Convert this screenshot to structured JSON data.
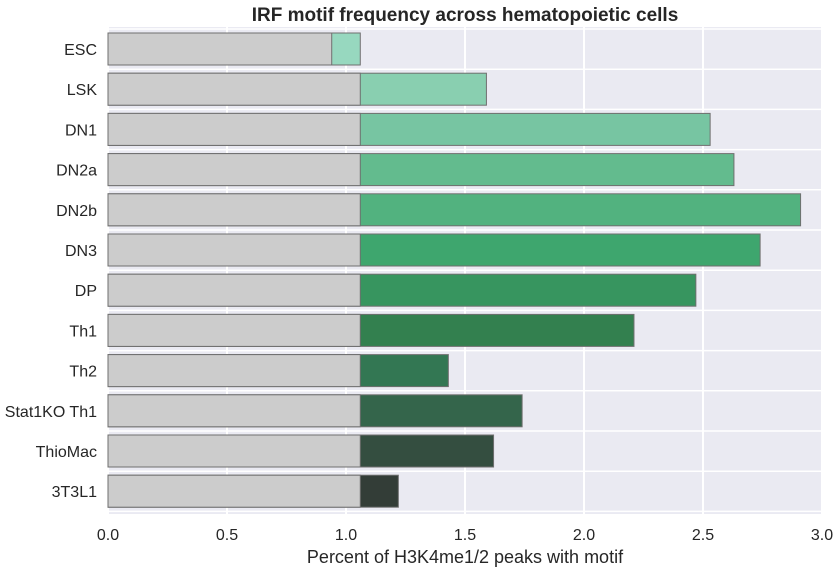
{
  "chart_data": {
    "type": "bar",
    "orientation": "horizontal",
    "title": "IRF motif frequency across hematopoietic cells",
    "xlabel": "Percent of H3K4me1/2 peaks with motif",
    "ylabel": "",
    "xlim": [
      0,
      3.0
    ],
    "xticks": [
      "0.0",
      "0.5",
      "1.0",
      "1.5",
      "2.0",
      "2.5",
      "3.0"
    ],
    "grid": true,
    "categories": [
      "ESC",
      "LSK",
      "DN1",
      "DN2a",
      "DN2b",
      "DN3",
      "DP",
      "Th1",
      "Th2",
      "Stat1KO Th1",
      "ThioMac",
      "3T3L1"
    ],
    "series": [
      {
        "role": "background",
        "values": [
          0.94,
          1.06,
          1.06,
          1.06,
          1.06,
          1.06,
          1.06,
          1.06,
          1.06,
          1.06,
          1.06,
          1.06
        ],
        "color": "#cccccc"
      },
      {
        "role": "foreground",
        "values": [
          1.06,
          1.59,
          2.53,
          2.63,
          2.91,
          2.74,
          2.47,
          2.21,
          1.43,
          1.74,
          1.62,
          1.22
        ],
        "colors": [
          "#97d8bf",
          "#89cfb0",
          "#77c5a2",
          "#63bb8e",
          "#52b27f",
          "#3ea66e",
          "#37955f",
          "#33804f",
          "#337753",
          "#34654b",
          "#344e40",
          "#333d37"
        ]
      }
    ]
  },
  "colors": {
    "plot_background": "#eaeaf2",
    "grid": "#ffffff",
    "bar_edge": "#6f6f6f",
    "text": "#262626"
  }
}
